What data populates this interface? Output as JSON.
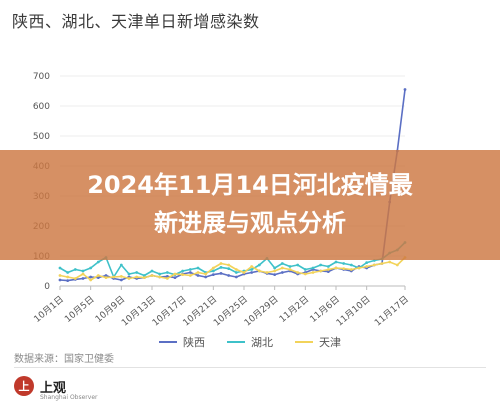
{
  "overlay": {
    "line1": "2024年11月14日河北疫情最",
    "line2": "新进展与观点分析"
  },
  "source": "数据来源：国家卫健委",
  "logo": {
    "mark": "上",
    "name": "上观",
    "sub": "Shanghai Observer"
  },
  "colors": {
    "shaanxi": "#5b6fc4",
    "hubei": "#3ec1c9",
    "tianjin": "#f2d35a"
  },
  "chart_data": {
    "type": "line",
    "title": "陕西、湖北、天津单日新增感染数",
    "ylim": [
      0,
      700
    ],
    "yticks": [
      0,
      100,
      200,
      300,
      400,
      500,
      600,
      700
    ],
    "xtick_labels": [
      "10月1日",
      "10月5日",
      "10月9日",
      "10月13日",
      "10月17日",
      "10月21日",
      "10月25日",
      "10月29日",
      "11月2日",
      "11月6日",
      "11月10日",
      "11月17日"
    ],
    "xtick_index": [
      0,
      4,
      8,
      12,
      16,
      20,
      24,
      28,
      32,
      36,
      40,
      45
    ],
    "n_points": 46,
    "legend_position": "bottom",
    "series": [
      {
        "name": "陕西",
        "color_key": "shaanxi",
        "values": [
          20,
          18,
          22,
          25,
          30,
          28,
          35,
          25,
          20,
          30,
          25,
          28,
          35,
          30,
          32,
          28,
          40,
          45,
          35,
          30,
          38,
          42,
          35,
          30,
          40,
          45,
          50,
          42,
          38,
          45,
          50,
          40,
          45,
          55,
          50,
          48,
          60,
          55,
          50,
          65,
          60,
          70,
          75,
          280,
          450,
          655
        ]
      },
      {
        "name": "湖北",
        "color_key": "hubei",
        "values": [
          60,
          45,
          55,
          50,
          60,
          80,
          95,
          30,
          70,
          40,
          45,
          35,
          50,
          40,
          45,
          38,
          50,
          55,
          60,
          45,
          50,
          62,
          58,
          45,
          50,
          55,
          70,
          92,
          60,
          75,
          65,
          70,
          55,
          60,
          70,
          65,
          80,
          75,
          70,
          60,
          78,
          85,
          90,
          110,
          120,
          145
        ]
      },
      {
        "name": "天津",
        "color_key": "tianjin",
        "values": [
          35,
          30,
          25,
          40,
          20,
          35,
          28,
          30,
          32,
          25,
          30,
          28,
          35,
          30,
          25,
          40,
          38,
          35,
          45,
          40,
          60,
          75,
          70,
          55,
          45,
          65,
          50,
          45,
          50,
          60,
          55,
          45,
          40,
          45,
          50,
          55,
          60,
          58,
          55,
          60,
          65,
          70,
          75,
          80,
          70,
          95
        ]
      }
    ]
  }
}
